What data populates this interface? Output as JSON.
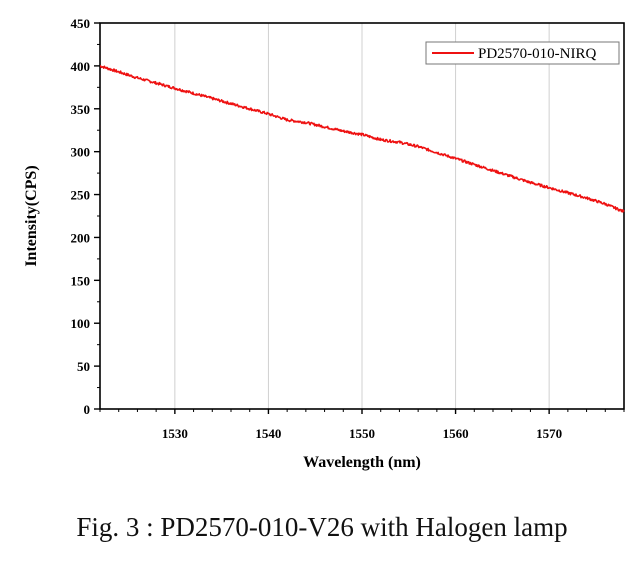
{
  "chart_data": {
    "type": "line",
    "xlabel": "Wavelength (nm)",
    "ylabel": "Intensity(CPS)",
    "xlim": [
      1522,
      1578
    ],
    "ylim": [
      0,
      450
    ],
    "x_ticks": [
      1530,
      1540,
      1550,
      1560,
      1570
    ],
    "y_ticks": [
      0,
      50,
      100,
      150,
      200,
      250,
      300,
      350,
      400,
      450
    ],
    "grid": "vertical",
    "legend_position": "top-right",
    "series": [
      {
        "name": "PD2570-010-NIRQ",
        "color": "#ee1111",
        "x": [
          1522,
          1524,
          1526,
          1528,
          1530,
          1532,
          1534,
          1536,
          1538,
          1540,
          1542,
          1544,
          1546,
          1548,
          1550,
          1552,
          1554,
          1556,
          1558,
          1560,
          1562,
          1564,
          1566,
          1568,
          1570,
          1572,
          1574,
          1576,
          1578
        ],
        "y": [
          400,
          393,
          386,
          380,
          374,
          368,
          362,
          356,
          350,
          344,
          337,
          334,
          329,
          324,
          320,
          314,
          311,
          306,
          299,
          292,
          285,
          278,
          271,
          264,
          258,
          252,
          246,
          239,
          230
        ]
      }
    ]
  },
  "caption": "Fig. 3 :  PD2570-010-V26 with Halogen lamp"
}
